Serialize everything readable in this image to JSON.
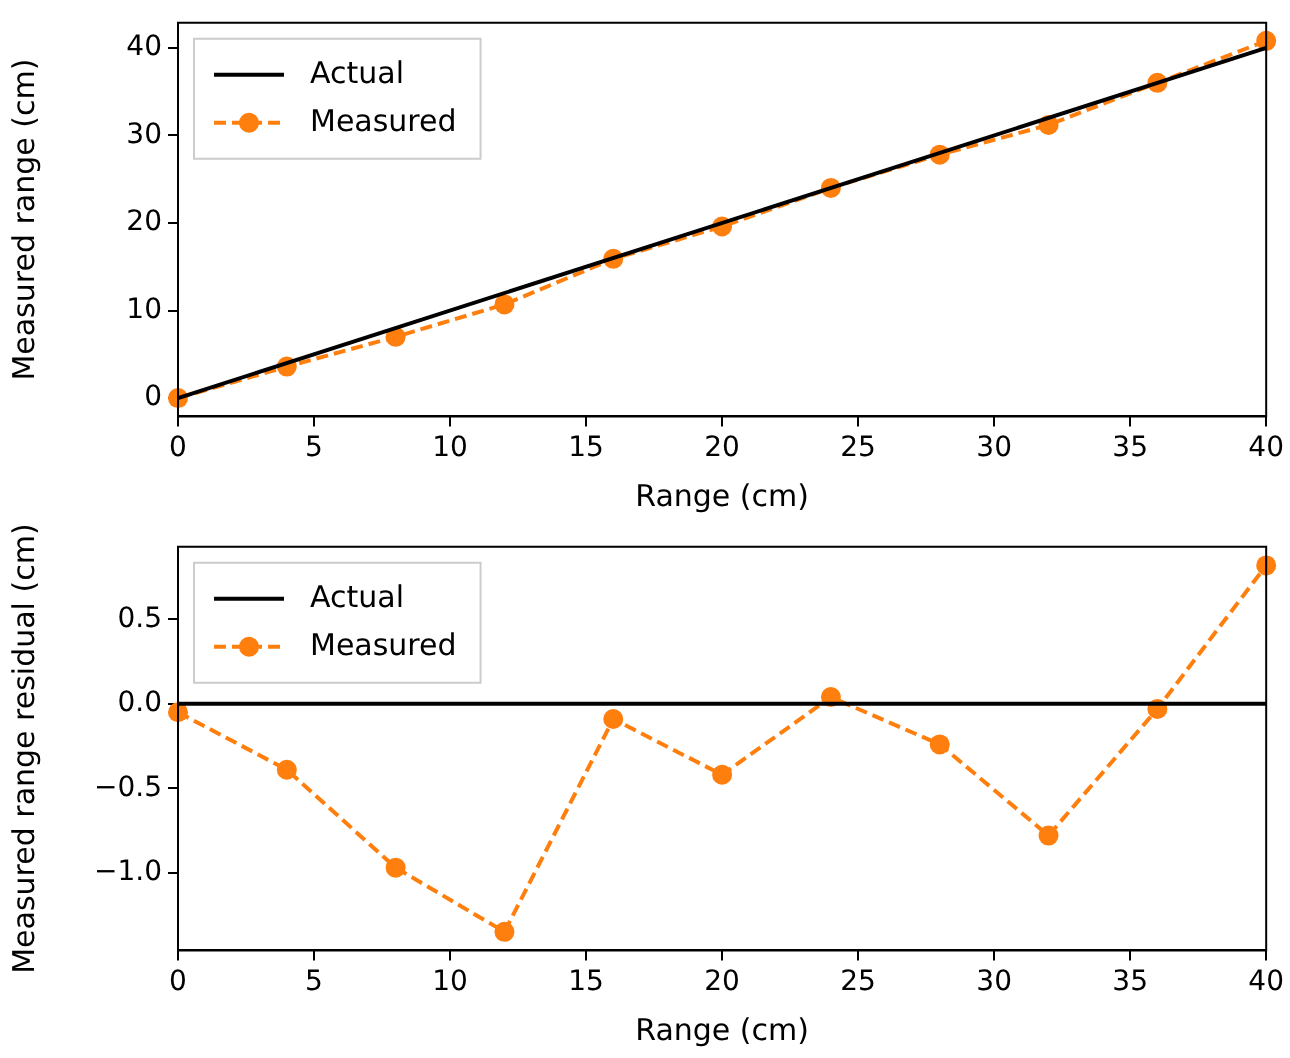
{
  "chart_data": [
    {
      "type": "line",
      "xlabel": "Range (cm)",
      "ylabel": "Measured range (cm)",
      "xlim": [
        0,
        40
      ],
      "ylim": [
        -2.09,
        42.86
      ],
      "xticks": [
        0,
        5,
        10,
        15,
        20,
        25,
        30,
        35,
        40
      ],
      "yticks": [
        0,
        10,
        20,
        30,
        40
      ],
      "legend": "top left",
      "grid": false,
      "series": [
        {
          "name": "Actual",
          "color": "#000000",
          "x": [
            0,
            40
          ],
          "values": [
            0,
            40
          ],
          "line_style": "solid",
          "marker": "none"
        },
        {
          "name": "Measured",
          "color": "#ff7f0e",
          "x": [
            0,
            4,
            8,
            12,
            16,
            20,
            24,
            28,
            32,
            36,
            40
          ],
          "values": [
            0,
            3.6,
            7.0,
            10.7,
            15.9,
            19.6,
            24.0,
            27.8,
            31.2,
            36.0,
            40.8
          ],
          "line_style": "dashed",
          "marker": "circle"
        }
      ]
    },
    {
      "type": "line",
      "xlabel": "Range (cm)",
      "ylabel": "Measured range residual (cm)",
      "xlim": [
        0,
        40
      ],
      "ylim": [
        -1.46,
        0.93
      ],
      "xticks": [
        0,
        5,
        10,
        15,
        20,
        25,
        30,
        35,
        40
      ],
      "yticks": [
        {
          "value": -1,
          "label": "−1.0"
        },
        {
          "value": -0.5,
          "label": "−0.5"
        },
        {
          "value": 0,
          "label": "0.0"
        },
        {
          "value": 0.5,
          "label": "0.5"
        }
      ],
      "legend": "top left",
      "grid": false,
      "series": [
        {
          "name": "Actual",
          "color": "#000000",
          "x": [
            0,
            40
          ],
          "values": [
            0,
            0
          ],
          "line_style": "solid",
          "marker": "none"
        },
        {
          "name": "Measured",
          "color": "#ff7f0e",
          "x": [
            0,
            4,
            8,
            12,
            16,
            20,
            24,
            28,
            32,
            36,
            40
          ],
          "values": [
            -0.05,
            -0.39,
            -0.97,
            -1.35,
            -0.09,
            -0.42,
            0.04,
            -0.24,
            -0.78,
            -0.03,
            0.82
          ],
          "line_style": "dashed",
          "marker": "circle"
        }
      ]
    }
  ]
}
